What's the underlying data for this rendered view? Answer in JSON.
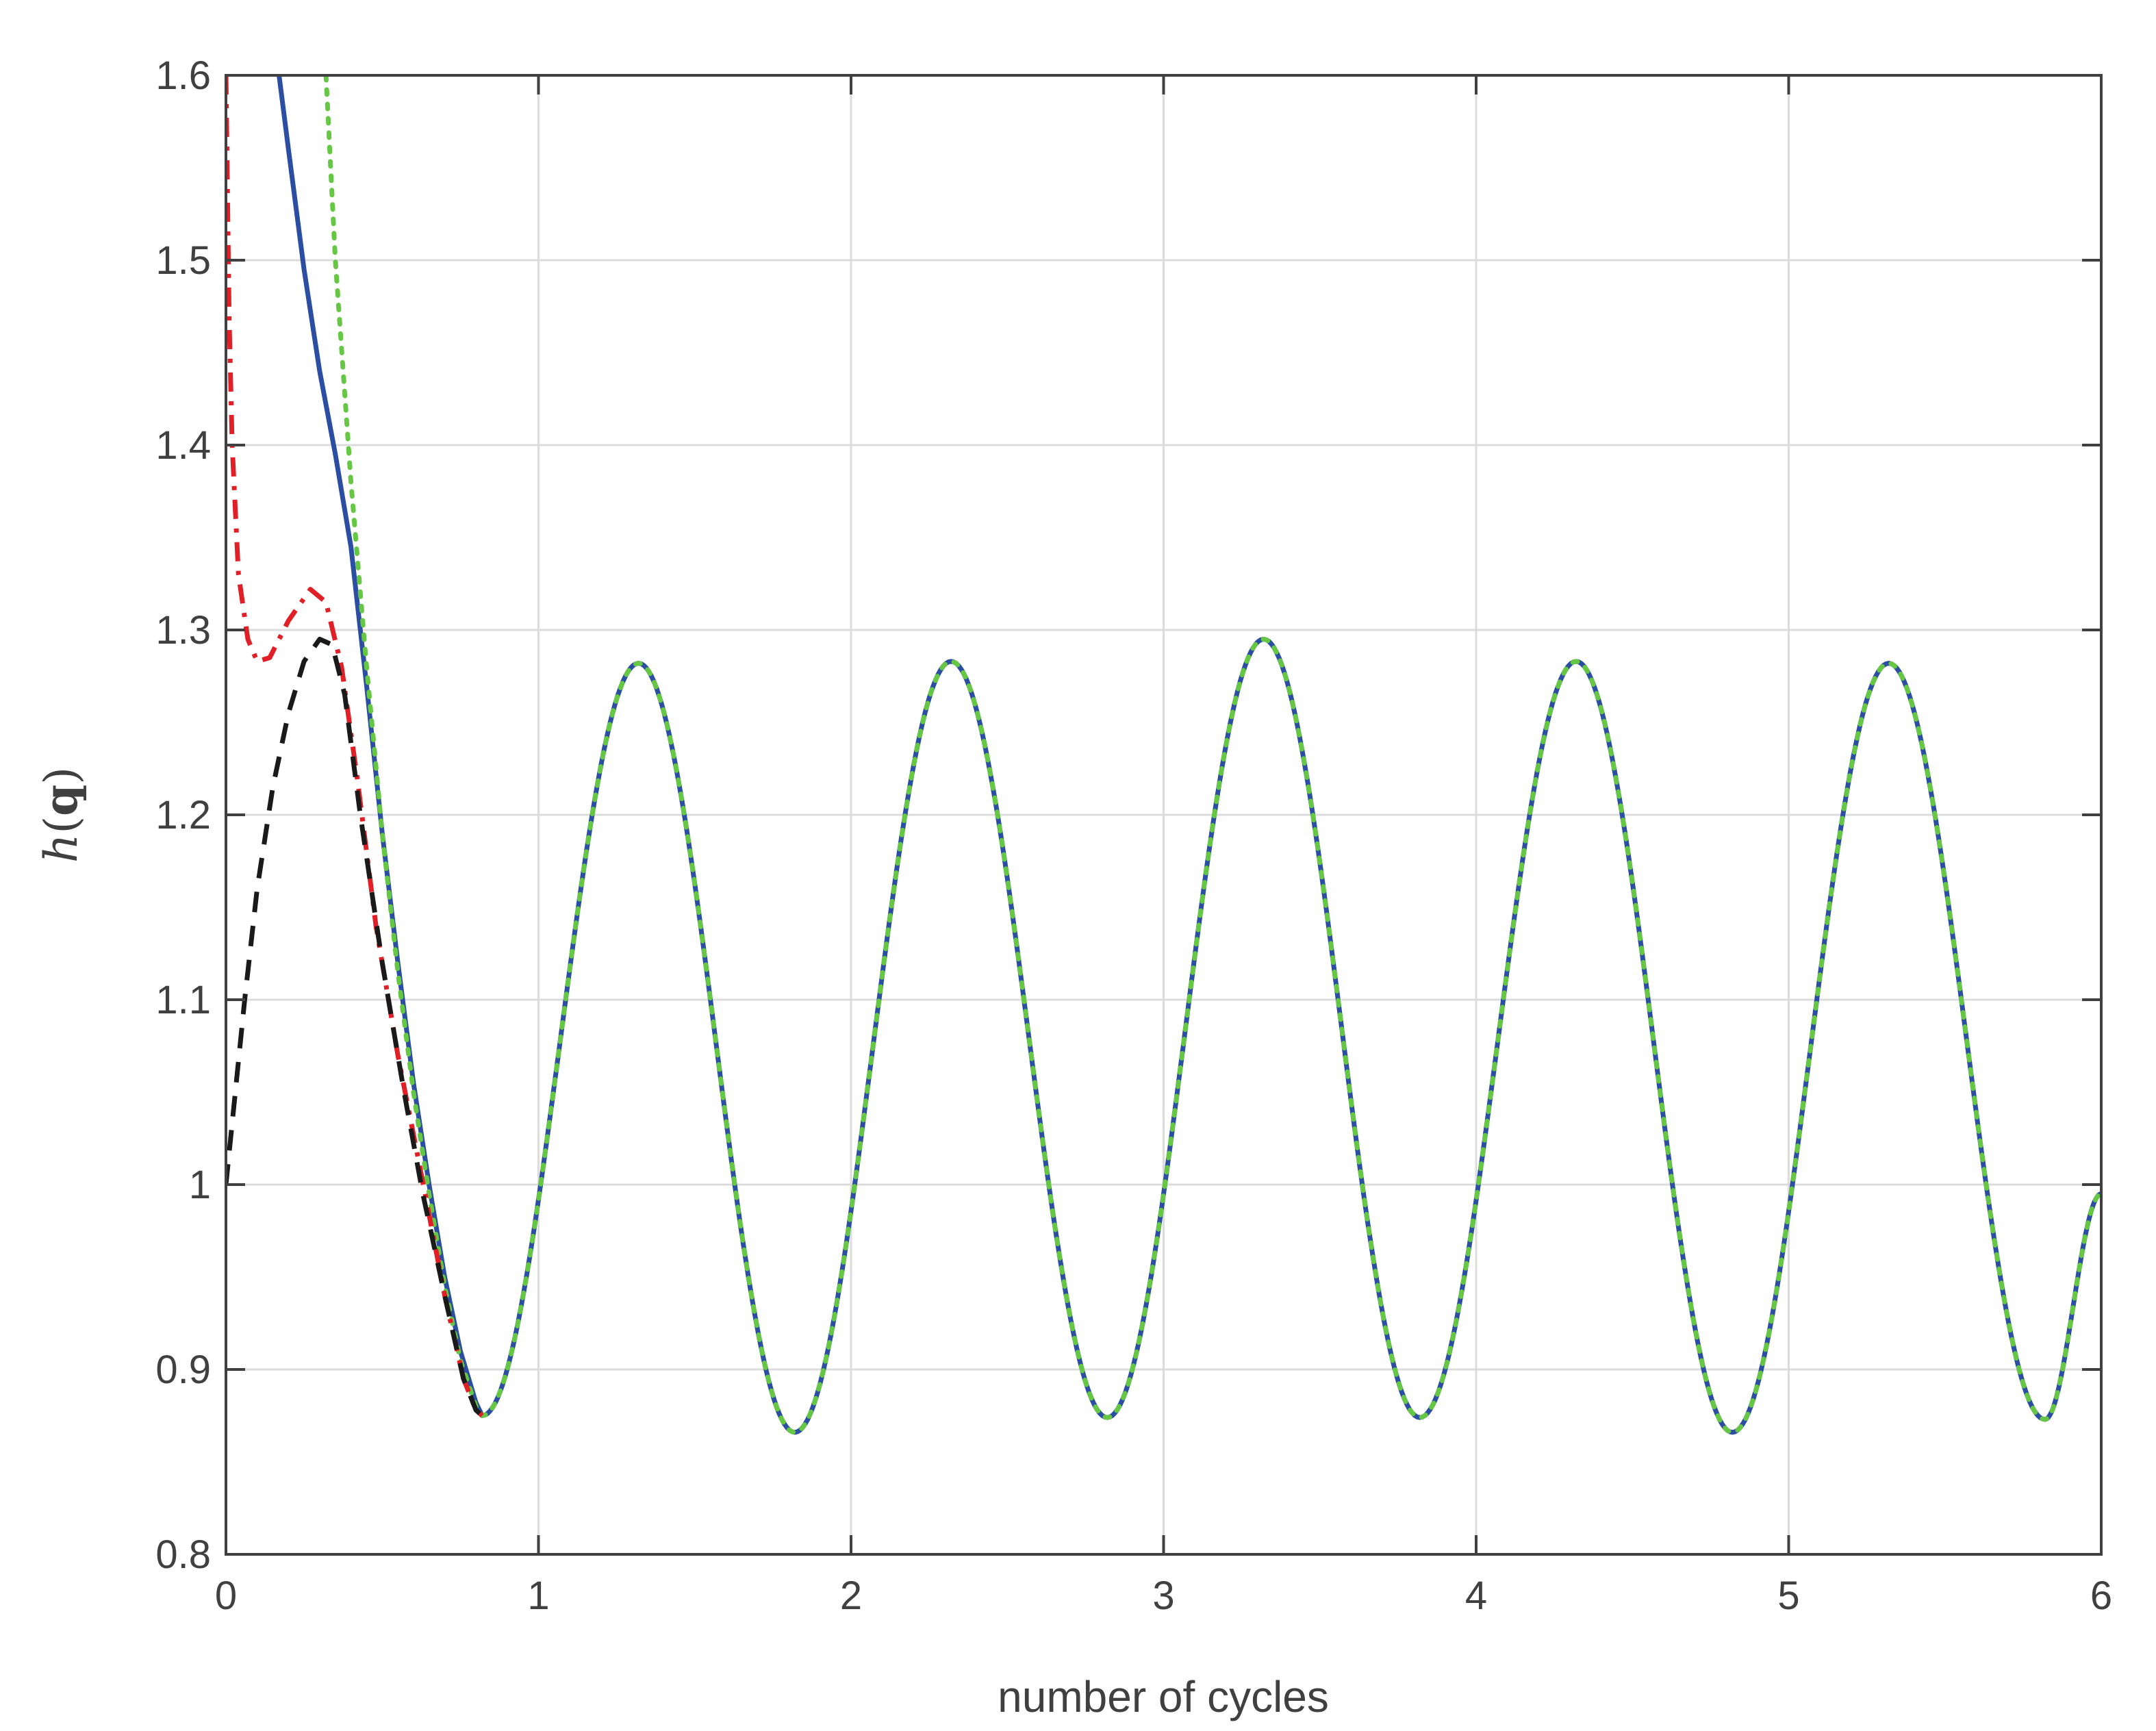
{
  "chart_data": {
    "type": "line",
    "title": "",
    "xlabel": "number of cycles",
    "ylabel": {
      "italic": "h",
      "open": "(",
      "bold": "q",
      "close": ")"
    },
    "xlim": [
      0,
      6
    ],
    "ylim": [
      0.8,
      1.6
    ],
    "grid": true,
    "legend": "none",
    "x_ticks": [
      0,
      1,
      2,
      3,
      4,
      5,
      6
    ],
    "x_tick_labels": [
      "0",
      "1",
      "2",
      "3",
      "4",
      "5",
      "6"
    ],
    "y_ticks": [
      0.8,
      0.9,
      1.0,
      1.1,
      1.2,
      1.3,
      1.4,
      1.5,
      1.6
    ],
    "y_tick_labels": [
      "0.8",
      "0.9",
      "1",
      "1.1",
      "1.2",
      "1.3",
      "1.4",
      "1.5",
      "1.6"
    ],
    "steady_state": {
      "start_x": 0.82,
      "min_x": [
        0.82,
        1.82,
        2.82,
        3.82,
        4.82,
        5.82
      ],
      "min_y": [
        0.875,
        0.866,
        0.874,
        0.874,
        0.866,
        0.873
      ],
      "max_x": [
        1.32,
        2.32,
        3.32,
        4.32,
        5.32
      ],
      "max_y": [
        1.282,
        1.283,
        1.295,
        1.283,
        1.282
      ],
      "end": [
        6.0,
        0.995
      ]
    },
    "series": [
      {
        "color": "#2b4ea3",
        "dash": "solid",
        "width": 7,
        "draw_steady": true,
        "transient": [
          [
            0.17,
            1.6
          ],
          [
            0.2,
            1.56
          ],
          [
            0.25,
            1.495
          ],
          [
            0.3,
            1.44
          ],
          [
            0.35,
            1.395
          ],
          [
            0.4,
            1.345
          ],
          [
            0.45,
            1.27
          ],
          [
            0.5,
            1.19
          ],
          [
            0.55,
            1.12
          ],
          [
            0.6,
            1.055
          ],
          [
            0.65,
            1.0
          ],
          [
            0.7,
            0.95
          ],
          [
            0.75,
            0.91
          ],
          [
            0.8,
            0.882
          ]
        ]
      },
      {
        "color": "#66c744",
        "dash": "dotted",
        "width": 7,
        "draw_steady": true,
        "transient": [
          [
            0.32,
            1.6
          ],
          [
            0.35,
            1.5
          ],
          [
            0.4,
            1.38
          ],
          [
            0.45,
            1.28
          ],
          [
            0.5,
            1.19
          ],
          [
            0.55,
            1.115
          ],
          [
            0.6,
            1.05
          ],
          [
            0.65,
            0.995
          ],
          [
            0.7,
            0.945
          ],
          [
            0.75,
            0.905
          ],
          [
            0.8,
            0.88
          ]
        ]
      },
      {
        "color": "#e01f26",
        "dash": "dashdot",
        "width": 7,
        "draw_steady": false,
        "transient": [
          [
            0.0,
            1.6
          ],
          [
            0.01,
            1.47
          ],
          [
            0.02,
            1.4
          ],
          [
            0.04,
            1.33
          ],
          [
            0.07,
            1.295
          ],
          [
            0.1,
            1.283
          ],
          [
            0.14,
            1.285
          ],
          [
            0.2,
            1.305
          ],
          [
            0.27,
            1.322
          ],
          [
            0.32,
            1.315
          ],
          [
            0.37,
            1.28
          ],
          [
            0.42,
            1.22
          ],
          [
            0.48,
            1.14
          ],
          [
            0.55,
            1.07
          ],
          [
            0.62,
            1.01
          ],
          [
            0.7,
            0.94
          ],
          [
            0.76,
            0.895
          ],
          [
            0.8,
            0.878
          ],
          [
            0.82,
            0.875
          ]
        ]
      },
      {
        "color": "#1a1a1a",
        "dash": "dashed",
        "width": 7,
        "draw_steady": false,
        "transient": [
          [
            0.0,
            1.0
          ],
          [
            0.03,
            1.05
          ],
          [
            0.06,
            1.1
          ],
          [
            0.1,
            1.16
          ],
          [
            0.15,
            1.215
          ],
          [
            0.2,
            1.255
          ],
          [
            0.25,
            1.283
          ],
          [
            0.3,
            1.295
          ],
          [
            0.34,
            1.292
          ],
          [
            0.38,
            1.265
          ],
          [
            0.43,
            1.2
          ],
          [
            0.5,
            1.12
          ],
          [
            0.57,
            1.05
          ],
          [
            0.63,
            0.995
          ],
          [
            0.7,
            0.94
          ],
          [
            0.76,
            0.895
          ],
          [
            0.8,
            0.878
          ],
          [
            0.82,
            0.875
          ]
        ]
      }
    ]
  }
}
